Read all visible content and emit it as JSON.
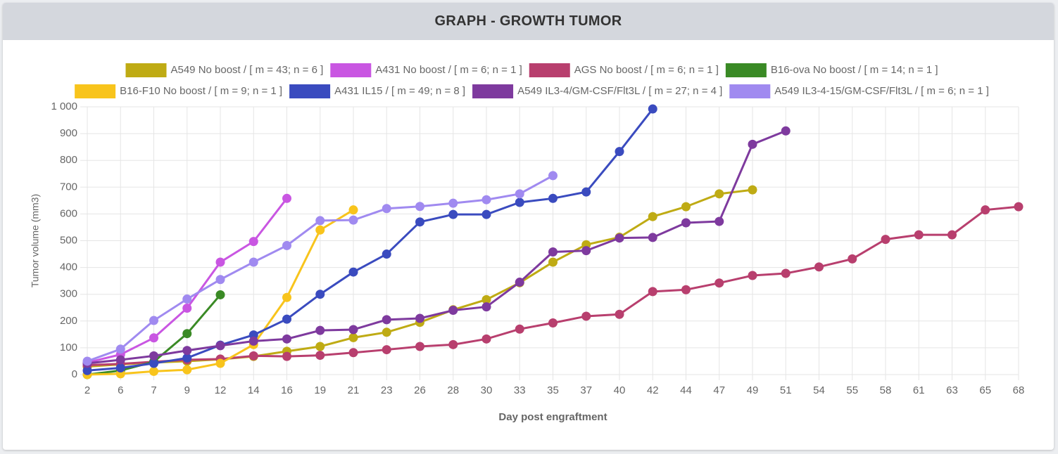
{
  "header": {
    "title": "GRAPH - GROWTH TUMOR"
  },
  "chart_data": {
    "type": "line",
    "x_label": "Day post engraftment",
    "y_label": "Tumor volume (mm3)",
    "categories": [
      2,
      6,
      7,
      9,
      12,
      14,
      16,
      19,
      21,
      23,
      26,
      28,
      30,
      33,
      35,
      37,
      40,
      42,
      44,
      47,
      49,
      51,
      54,
      55,
      58,
      61,
      63,
      65,
      68
    ],
    "ylim": [
      0,
      1000
    ],
    "yticks": [
      0,
      100,
      200,
      300,
      400,
      500,
      600,
      700,
      800,
      900,
      {
        "value": 1000,
        "label": "1 000"
      }
    ],
    "grid": true,
    "legend": "top",
    "series": [
      {
        "name": "A549 No boost / [ m = 43; n = 6 ]",
        "color": "#bfab14",
        "values": [
          30,
          38,
          45,
          50,
          57,
          68,
          87,
          105,
          138,
          158,
          195,
          242,
          280,
          343,
          420,
          485,
          513,
          590,
          627,
          675,
          690,
          null,
          null,
          null,
          null,
          null,
          null,
          null,
          null
        ]
      },
      {
        "name": "A431 No boost / [ m = 6; n = 1 ]",
        "color": "#c956e2",
        "values": [
          45,
          75,
          137,
          248,
          420,
          497,
          658,
          null,
          null,
          null,
          null,
          null,
          null,
          null,
          null,
          null,
          null,
          null,
          null,
          null,
          null,
          null,
          null,
          null,
          null,
          null,
          null,
          null,
          null
        ]
      },
      {
        "name": "AGS No boost / [ m = 6; n = 1 ]",
        "color": "#b83f6e",
        "values": [
          35,
          40,
          48,
          55,
          58,
          70,
          68,
          72,
          82,
          93,
          105,
          112,
          133,
          170,
          193,
          218,
          225,
          310,
          317,
          342,
          370,
          378,
          402,
          432,
          505,
          522,
          522,
          615,
          627
        ]
      },
      {
        "name": "B16-ova No boost / [ m = 14; n = 1 ]",
        "color": "#3a8a25",
        "values": [
          0,
          15,
          48,
          153,
          298,
          null,
          null,
          null,
          null,
          null,
          null,
          null,
          null,
          null,
          null,
          null,
          null,
          null,
          null,
          null,
          null,
          null,
          null,
          null,
          null,
          null,
          null,
          null,
          null
        ]
      },
      {
        "name": "B16-F10 No boost / [ m = 9; n = 1 ]",
        "color": "#f8c41c",
        "values": [
          0,
          3,
          12,
          18,
          42,
          112,
          288,
          540,
          615,
          null,
          null,
          null,
          null,
          null,
          null,
          null,
          null,
          null,
          null,
          null,
          null,
          null,
          null,
          null,
          null,
          null,
          null,
          null,
          null
        ]
      },
      {
        "name": "A431 IL15 / [ m = 49; n = 8 ]",
        "color": "#3a4bbf",
        "values": [
          15,
          25,
          42,
          62,
          110,
          148,
          207,
          300,
          383,
          450,
          570,
          598,
          598,
          643,
          658,
          682,
          833,
          992,
          null,
          null,
          null,
          null,
          null,
          null,
          null,
          null,
          null,
          null,
          null
        ]
      },
      {
        "name": "A549 IL3-4/GM-CSF/Flt3L / [ m = 27; n = 4 ]",
        "color": "#7e3a9e",
        "values": [
          42,
          55,
          70,
          90,
          108,
          125,
          133,
          165,
          168,
          205,
          210,
          240,
          253,
          345,
          458,
          463,
          510,
          512,
          567,
          572,
          860,
          910,
          null,
          null,
          null,
          null,
          null,
          null,
          null
        ]
      },
      {
        "name": "A549 IL3-4-15/GM-CSF/Flt3L / [ m = 6; n = 1 ]",
        "color": "#a08af0",
        "values": [
          50,
          95,
          202,
          282,
          355,
          420,
          482,
          575,
          577,
          620,
          628,
          640,
          653,
          675,
          743,
          null,
          null,
          null,
          null,
          null,
          null,
          null,
          null,
          null,
          null,
          null,
          null,
          null,
          null
        ]
      }
    ]
  }
}
